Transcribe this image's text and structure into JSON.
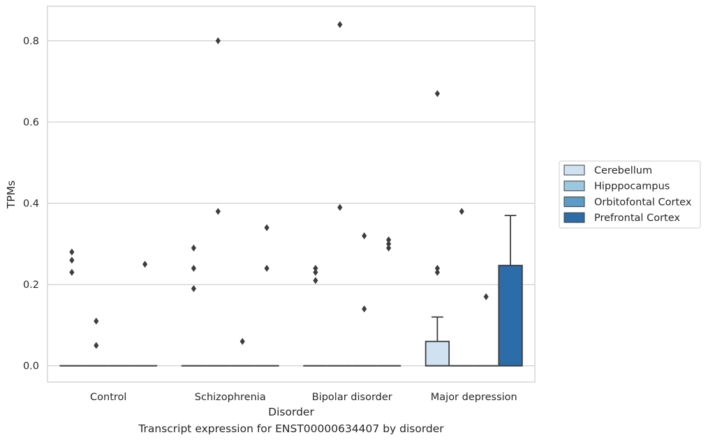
{
  "caption": "Transcript expression for ENST00000634407 by disorder",
  "chart_data": {
    "type": "box",
    "xlabel": "Disorder",
    "ylabel": "TPMs",
    "categories": [
      "Control",
      "Schizophrenia",
      "Bipolar disorder",
      "Major depression"
    ],
    "ylim": [
      -0.04,
      0.885
    ],
    "yticks": [
      0.0,
      0.2,
      0.4,
      0.6,
      0.8
    ],
    "ytick_labels": [
      "0.0",
      "0.2",
      "0.4",
      "0.6",
      "0.8"
    ],
    "grid": "y",
    "legend_position": "center-right-outside",
    "series": [
      {
        "name": "Cerebellum",
        "color": "#d0e1f2",
        "boxes": [
          {
            "q1": 0,
            "median": 0,
            "q3": 0,
            "whisker_low": 0,
            "whisker_high": 0,
            "outliers": [
              0.23,
              0.26,
              0.28
            ]
          },
          {
            "q1": 0,
            "median": 0,
            "q3": 0,
            "whisker_low": 0,
            "whisker_high": 0,
            "outliers": [
              0.19,
              0.24,
              0.29
            ]
          },
          {
            "q1": 0,
            "median": 0,
            "q3": 0,
            "whisker_low": 0,
            "whisker_high": 0,
            "outliers": [
              0.21,
              0.23,
              0.24
            ]
          },
          {
            "q1": 0,
            "median": 0,
            "q3": 0.06,
            "whisker_low": 0,
            "whisker_high": 0.12,
            "outliers": [
              0.23,
              0.24,
              0.67
            ]
          }
        ]
      },
      {
        "name": "Hipppocampus",
        "color": "#9ac8e0",
        "boxes": [
          {
            "q1": 0,
            "median": 0,
            "q3": 0,
            "whisker_low": 0,
            "whisker_high": 0,
            "outliers": [
              0.05,
              0.11
            ]
          },
          {
            "q1": 0,
            "median": 0,
            "q3": 0,
            "whisker_low": 0,
            "whisker_high": 0,
            "outliers": [
              0.38,
              0.8
            ]
          },
          {
            "q1": 0,
            "median": 0,
            "q3": 0,
            "whisker_low": 0,
            "whisker_high": 0,
            "outliers": [
              0.39,
              0.84
            ]
          },
          {
            "q1": 0,
            "median": 0,
            "q3": 0,
            "whisker_low": 0,
            "whisker_high": 0,
            "outliers": [
              0.38
            ]
          }
        ]
      },
      {
        "name": "Orbitofontal Cortex",
        "color": "#5b9bc8",
        "boxes": [
          {
            "q1": 0,
            "median": 0,
            "q3": 0,
            "whisker_low": 0,
            "whisker_high": 0,
            "outliers": []
          },
          {
            "q1": 0,
            "median": 0,
            "q3": 0,
            "whisker_low": 0,
            "whisker_high": 0,
            "outliers": [
              0.06
            ]
          },
          {
            "q1": 0,
            "median": 0,
            "q3": 0,
            "whisker_low": 0,
            "whisker_high": 0,
            "outliers": [
              0.14,
              0.32
            ]
          },
          {
            "q1": 0,
            "median": 0,
            "q3": 0,
            "whisker_low": 0,
            "whisker_high": 0,
            "outliers": [
              0.17
            ]
          }
        ]
      },
      {
        "name": "Prefrontal Cortex",
        "color": "#2b6ca9",
        "boxes": [
          {
            "q1": 0,
            "median": 0,
            "q3": 0,
            "whisker_low": 0,
            "whisker_high": 0,
            "outliers": [
              0.25
            ]
          },
          {
            "q1": 0,
            "median": 0,
            "q3": 0,
            "whisker_low": 0,
            "whisker_high": 0,
            "outliers": [
              0.24,
              0.34
            ]
          },
          {
            "q1": 0,
            "median": 0,
            "q3": 0,
            "whisker_low": 0,
            "whisker_high": 0,
            "outliers": [
              0.29,
              0.3,
              0.31
            ]
          },
          {
            "q1": 0,
            "median": 0,
            "q3": 0.247,
            "whisker_low": 0,
            "whisker_high": 0.37,
            "outliers": []
          }
        ]
      }
    ]
  }
}
